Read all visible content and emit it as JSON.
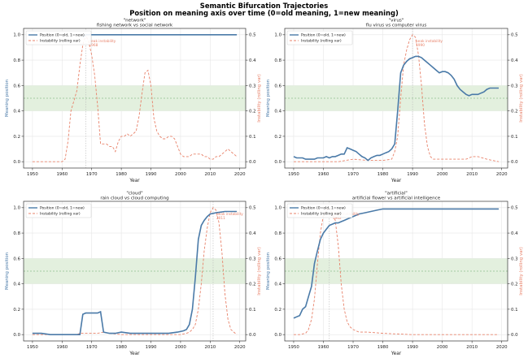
{
  "suptitle": "Semantic Bifurcation Trajectories",
  "subtitle": "Position on meaning axis over time (0=old meaning, 1=new meaning)",
  "colors": {
    "position": "#4a7aa8",
    "instability": "#e8826a",
    "band": "#e3f0de",
    "grid": "#e6e6e6",
    "midline": "#8fbf8f"
  },
  "chart_data": [
    {
      "type": "line",
      "word": "\"network\"",
      "comparison": "fishing network  vs  social network",
      "xlabel": "Year",
      "ylabel": "Meaning position",
      "ylabel2": "Instability (rolling var)",
      "xlim": [
        1947,
        2022
      ],
      "ylim": [
        -0.05,
        1.05
      ],
      "y2lim": [
        -0.025,
        0.525
      ],
      "xticks": [
        1950,
        1960,
        1970,
        1980,
        1990,
        2000,
        2010,
        2020
      ],
      "yticks": [
        0.0,
        0.2,
        0.4,
        0.6,
        0.8,
        1.0
      ],
      "y2ticks": [
        0.0,
        0.1,
        0.2,
        0.3,
        0.4,
        0.5
      ],
      "band": [
        0.4,
        0.6
      ],
      "midline": 0.5,
      "legend": [
        "Position (0=old, 1=new)",
        "Instability (rolling var)"
      ],
      "legend_loc": "upper left",
      "peak_label": "peak instability\n1968",
      "peak_year": 1968,
      "position": {
        "name": "Position (0=old, 1=new)",
        "x": [
          1967,
          1968,
          1970,
          1980,
          1990,
          2000,
          2010,
          2019
        ],
        "y": [
          0.98,
          1.0,
          1.0,
          1.0,
          1.0,
          1.0,
          1.0,
          1.0
        ]
      },
      "instability": {
        "name": "Instability (rolling var)",
        "x": [
          1950,
          1952,
          1954,
          1956,
          1958,
          1960,
          1961,
          1962,
          1963,
          1964,
          1965,
          1966,
          1967,
          1968,
          1969,
          1970,
          1971,
          1972,
          1973,
          1974,
          1975,
          1976,
          1977,
          1978,
          1979,
          1980,
          1981,
          1982,
          1983,
          1984,
          1985,
          1986,
          1987,
          1988,
          1989,
          1990,
          1991,
          1992,
          1993,
          1994,
          1995,
          1996,
          1997,
          1998,
          1999,
          2000,
          2001,
          2002,
          2003,
          2004,
          2005,
          2006,
          2007,
          2008,
          2009,
          2010,
          2011,
          2012,
          2013,
          2014,
          2015,
          2016,
          2017,
          2018,
          2019
        ],
        "y": [
          0.0,
          0.0,
          0.0,
          0.0,
          0.0,
          0.0,
          0.01,
          0.08,
          0.2,
          0.24,
          0.28,
          0.38,
          0.46,
          0.5,
          0.47,
          0.42,
          0.34,
          0.22,
          0.07,
          0.07,
          0.07,
          0.06,
          0.06,
          0.04,
          0.08,
          0.1,
          0.1,
          0.11,
          0.1,
          0.11,
          0.12,
          0.18,
          0.27,
          0.35,
          0.36,
          0.3,
          0.17,
          0.12,
          0.1,
          0.09,
          0.09,
          0.1,
          0.1,
          0.09,
          0.06,
          0.03,
          0.02,
          0.02,
          0.02,
          0.03,
          0.03,
          0.03,
          0.03,
          0.02,
          0.02,
          0.01,
          0.01,
          0.02,
          0.02,
          0.03,
          0.04,
          0.05,
          0.04,
          0.03,
          0.02
        ]
      }
    },
    {
      "type": "line",
      "word": "\"virus\"",
      "comparison": "flu virus  vs  computer virus",
      "xlabel": "Year",
      "ylabel": "Meaning position",
      "ylabel2": "Instability (rolling var)",
      "xlim": [
        1947,
        2022
      ],
      "ylim": [
        -0.05,
        1.05
      ],
      "y2lim": [
        -0.025,
        0.525
      ],
      "xticks": [
        1950,
        1960,
        1970,
        1980,
        1990,
        2000,
        2010,
        2020
      ],
      "yticks": [
        0.0,
        0.2,
        0.4,
        0.6,
        0.8,
        1.0
      ],
      "y2ticks": [
        0.0,
        0.1,
        0.2,
        0.3,
        0.4,
        0.5
      ],
      "band": [
        0.4,
        0.6
      ],
      "midline": 0.5,
      "legend": [
        "Position (0=old, 1=new)",
        "Instability (rolling var)"
      ],
      "legend_loc": "upper left",
      "peak_label": "peak instability\n1990",
      "peak_year": 1990,
      "position": {
        "name": "Position (0=old, 1=new)",
        "x": [
          1950,
          1951,
          1952,
          1953,
          1954,
          1955,
          1956,
          1957,
          1958,
          1959,
          1960,
          1961,
          1962,
          1963,
          1964,
          1965,
          1966,
          1967,
          1968,
          1969,
          1970,
          1971,
          1972,
          1973,
          1974,
          1975,
          1976,
          1977,
          1978,
          1979,
          1980,
          1981,
          1982,
          1983,
          1984,
          1985,
          1986,
          1987,
          1988,
          1989,
          1990,
          1991,
          1992,
          1993,
          1994,
          1995,
          1996,
          1997,
          1998,
          1999,
          2000,
          2001,
          2002,
          2003,
          2004,
          2005,
          2006,
          2007,
          2008,
          2009,
          2010,
          2011,
          2012,
          2013,
          2014,
          2015,
          2016,
          2017,
          2018,
          2019
        ],
        "y": [
          0.04,
          0.03,
          0.03,
          0.03,
          0.02,
          0.02,
          0.02,
          0.02,
          0.03,
          0.03,
          0.03,
          0.04,
          0.03,
          0.04,
          0.04,
          0.05,
          0.06,
          0.06,
          0.11,
          0.1,
          0.09,
          0.08,
          0.06,
          0.04,
          0.03,
          0.01,
          0.03,
          0.04,
          0.05,
          0.05,
          0.06,
          0.07,
          0.08,
          0.1,
          0.14,
          0.4,
          0.7,
          0.76,
          0.79,
          0.81,
          0.82,
          0.83,
          0.83,
          0.82,
          0.8,
          0.78,
          0.76,
          0.74,
          0.72,
          0.7,
          0.71,
          0.71,
          0.7,
          0.68,
          0.65,
          0.6,
          0.57,
          0.55,
          0.53,
          0.52,
          0.53,
          0.53,
          0.53,
          0.54,
          0.55,
          0.57,
          0.58,
          0.58,
          0.58,
          0.58
        ]
      },
      "instability": {
        "name": "Instability (rolling var)",
        "x": [
          1950,
          1955,
          1960,
          1965,
          1970,
          1975,
          1980,
          1983,
          1984,
          1985,
          1986,
          1987,
          1988,
          1989,
          1990,
          1991,
          1992,
          1993,
          1994,
          1995,
          1996,
          1997,
          1998,
          1999,
          2000,
          2003,
          2005,
          2008,
          2010,
          2012,
          2015,
          2019
        ],
        "y": [
          0.0,
          0.0,
          0.0,
          0.0,
          0.01,
          0.005,
          0.005,
          0.01,
          0.04,
          0.1,
          0.25,
          0.38,
          0.44,
          0.48,
          0.5,
          0.49,
          0.42,
          0.3,
          0.15,
          0.06,
          0.02,
          0.01,
          0.01,
          0.01,
          0.01,
          0.01,
          0.01,
          0.01,
          0.02,
          0.02,
          0.01,
          0.0
        ]
      }
    },
    {
      "type": "line",
      "word": "\"cloud\"",
      "comparison": "rain cloud  vs  cloud computing",
      "xlabel": "Year",
      "ylabel": "Meaning position",
      "ylabel2": "Instability (rolling var)",
      "xlim": [
        1947,
        2022
      ],
      "ylim": [
        -0.05,
        1.05
      ],
      "y2lim": [
        -0.025,
        0.525
      ],
      "xticks": [
        1950,
        1960,
        1970,
        1980,
        1990,
        2000,
        2010,
        2020
      ],
      "yticks": [
        0.0,
        0.2,
        0.4,
        0.6,
        0.8,
        1.0
      ],
      "y2ticks": [
        0.0,
        0.1,
        0.2,
        0.3,
        0.4,
        0.5
      ],
      "band": [
        0.4,
        0.6
      ],
      "midline": 0.5,
      "legend": [
        "Position (0=old, 1=new)",
        "Instability (rolling var)"
      ],
      "legend_loc": "upper left",
      "peak_label": "peak instability\n2011",
      "peak_year": 2011,
      "position": {
        "name": "Position (0=old, 1=new)",
        "x": [
          1950,
          1953,
          1956,
          1960,
          1963,
          1966,
          1967,
          1968,
          1970,
          1972,
          1973,
          1974,
          1976,
          1978,
          1980,
          1983,
          1986,
          1990,
          1993,
          1996,
          1999,
          2001,
          2002,
          2003,
          2004,
          2005,
          2006,
          2007,
          2008,
          2009,
          2010,
          2012,
          2015,
          2019
        ],
        "y": [
          0.01,
          0.01,
          0.0,
          0.0,
          0.0,
          0.0,
          0.16,
          0.17,
          0.17,
          0.17,
          0.18,
          0.02,
          0.01,
          0.01,
          0.02,
          0.01,
          0.01,
          0.01,
          0.01,
          0.01,
          0.02,
          0.03,
          0.04,
          0.08,
          0.2,
          0.45,
          0.75,
          0.86,
          0.9,
          0.93,
          0.95,
          0.96,
          0.97,
          0.97
        ]
      },
      "instability": {
        "name": "Instability (rolling var)",
        "x": [
          1950,
          1955,
          1960,
          1965,
          1966,
          1967,
          1968,
          1970,
          1972,
          1974,
          1976,
          1980,
          1985,
          1990,
          1995,
          2000,
          2002,
          2003,
          2004,
          2005,
          2006,
          2007,
          2008,
          2009,
          2010,
          2011,
          2012,
          2013,
          2014,
          2015,
          2016,
          2017,
          2018,
          2019
        ],
        "y": [
          0.0,
          0.0,
          0.0,
          0.0,
          0.005,
          0.005,
          0.005,
          0.005,
          0.005,
          0.01,
          0.005,
          0.0,
          0.0,
          0.0,
          0.0,
          0.0,
          0.005,
          0.01,
          0.02,
          0.04,
          0.1,
          0.2,
          0.33,
          0.42,
          0.48,
          0.5,
          0.49,
          0.44,
          0.32,
          0.16,
          0.06,
          0.02,
          0.01,
          0.0
        ]
      }
    },
    {
      "type": "line",
      "word": "\"artificial\"",
      "comparison": "artificial flower  vs  artificial intelligence",
      "xlabel": "Year",
      "ylabel": "Meaning position",
      "ylabel2": "Instability (rolling var)",
      "xlim": [
        1947,
        2022
      ],
      "ylim": [
        -0.05,
        1.05
      ],
      "y2lim": [
        -0.025,
        0.525
      ],
      "xticks": [
        1950,
        1960,
        1970,
        1980,
        1990,
        2000,
        2010,
        2020
      ],
      "yticks": [
        0.0,
        0.2,
        0.4,
        0.6,
        0.8,
        1.0
      ],
      "y2ticks": [
        0.0,
        0.1,
        0.2,
        0.3,
        0.4,
        0.5
      ],
      "band": [
        0.4,
        0.6
      ],
      "midline": 0.5,
      "legend": [
        "Position (0=old, 1=new)",
        "Instability (rolling var)"
      ],
      "legend_loc": "upper left",
      "peak_label": "peak instability\n1962",
      "peak_year": 1962,
      "position": {
        "name": "Position (0=old, 1=new)",
        "x": [
          1950,
          1951,
          1952,
          1953,
          1954,
          1955,
          1956,
          1957,
          1958,
          1959,
          1960,
          1961,
          1962,
          1963,
          1964,
          1965,
          1966,
          1967,
          1968,
          1969,
          1970,
          1972,
          1974,
          1976,
          1978,
          1980,
          1983,
          1986,
          1990,
          1995,
          2000,
          2005,
          2010,
          2015,
          2019
        ],
        "y": [
          0.13,
          0.14,
          0.15,
          0.2,
          0.22,
          0.3,
          0.38,
          0.56,
          0.66,
          0.75,
          0.8,
          0.83,
          0.86,
          0.87,
          0.88,
          0.88,
          0.89,
          0.9,
          0.91,
          0.92,
          0.93,
          0.95,
          0.96,
          0.97,
          0.98,
          0.99,
          0.99,
          0.99,
          0.99,
          0.99,
          0.99,
          0.99,
          0.99,
          0.99,
          0.99
        ]
      },
      "instability": {
        "name": "Instability (rolling var)",
        "x": [
          1950,
          1952,
          1954,
          1955,
          1956,
          1957,
          1958,
          1959,
          1960,
          1961,
          1962,
          1963,
          1964,
          1965,
          1966,
          1967,
          1968,
          1969,
          1970,
          1972,
          1975,
          1980,
          1990,
          2000,
          2010,
          2019
        ],
        "y": [
          0.0,
          0.0,
          0.005,
          0.02,
          0.06,
          0.14,
          0.28,
          0.4,
          0.47,
          0.49,
          0.5,
          0.48,
          0.45,
          0.35,
          0.2,
          0.1,
          0.05,
          0.03,
          0.02,
          0.01,
          0.01,
          0.005,
          0.0,
          0.0,
          0.0,
          0.0
        ]
      }
    }
  ]
}
